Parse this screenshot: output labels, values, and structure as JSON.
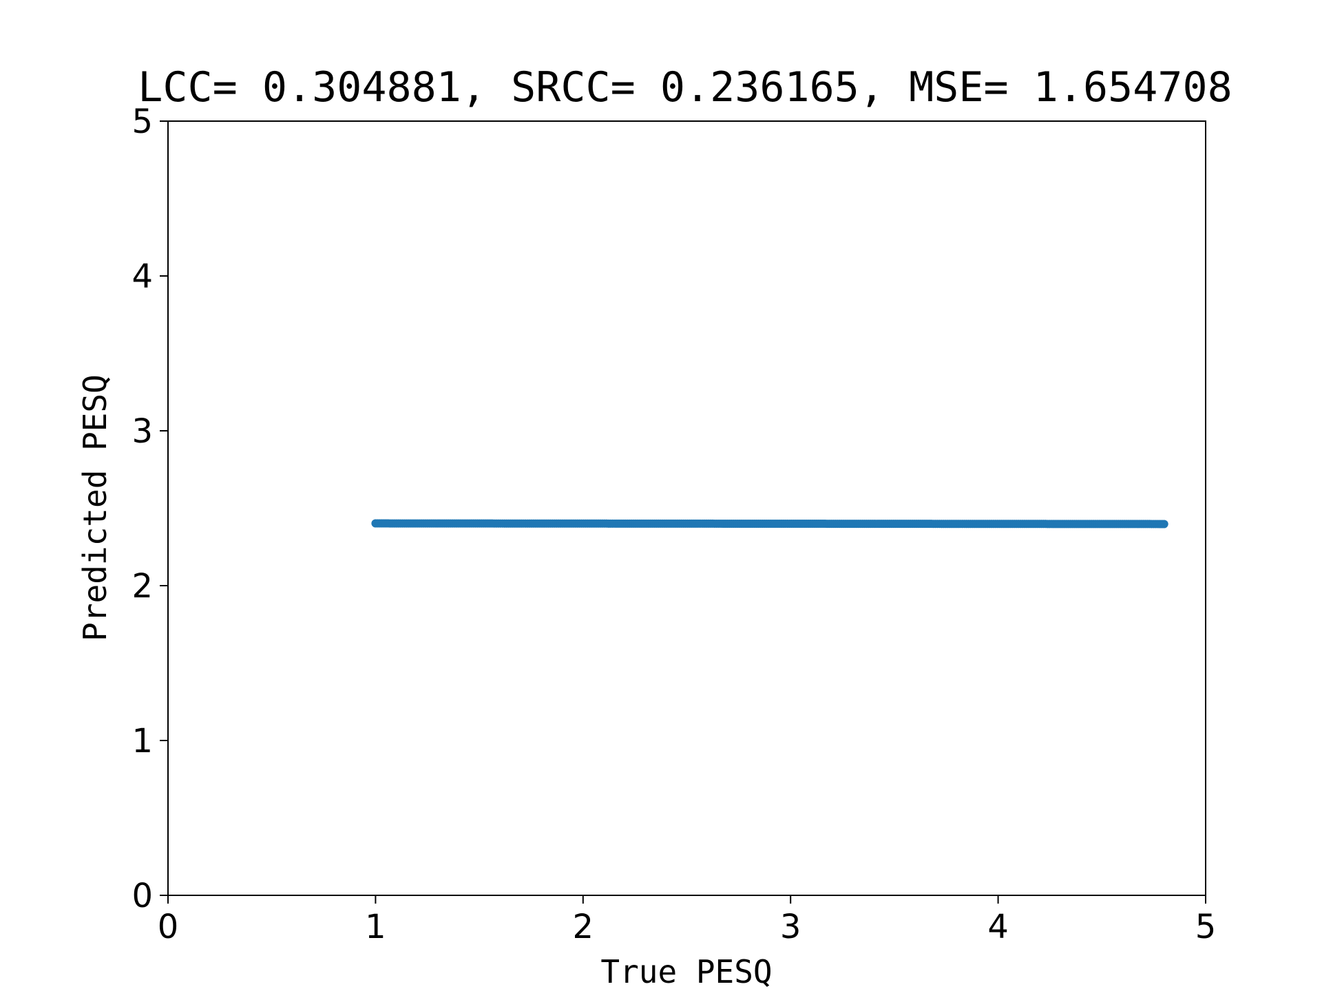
{
  "chart_data": {
    "type": "scatter",
    "title": "LCC= 0.304881, SRCC= 0.236165, MSE= 1.654708",
    "xlabel": "True PESQ",
    "ylabel": "Predicted PESQ",
    "xlim": [
      0,
      5
    ],
    "ylim": [
      0,
      5
    ],
    "xticks": [
      "0",
      "1",
      "2",
      "3",
      "4",
      "5"
    ],
    "yticks": [
      "0",
      "1",
      "2",
      "3",
      "4",
      "5"
    ],
    "grid": false,
    "legend": "none",
    "series": [
      {
        "color": "#1f77b4",
        "x_range": [
          1.0,
          4.8
        ],
        "y_start": 2.402,
        "y_end": 2.398,
        "point_count": 380
      }
    ]
  }
}
